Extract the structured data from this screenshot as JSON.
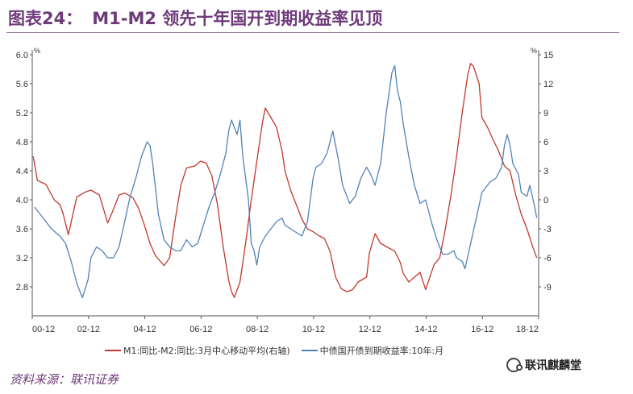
{
  "figure": {
    "number": "图表24：",
    "title": "M1-M2 领先十年国开到期收益率见顶"
  },
  "source": "资料来源：联讯证券",
  "watermark": "联讯麒麟堂",
  "colors": {
    "title": "#6e3b7a",
    "series_m1m2": "#c0392b",
    "series_yield": "#4f83b8",
    "axis": "#555555"
  },
  "chart_data": {
    "type": "line",
    "left_axis": {
      "unit": "%",
      "range": [
        2.4,
        6.0
      ],
      "ticks": [
        "6.0",
        "5.6",
        "5.2",
        "4.8",
        "4.4",
        "4.0",
        "3.6",
        "3.2",
        "2.8"
      ]
    },
    "right_axis": {
      "unit": "%",
      "range": [
        -12,
        15
      ],
      "ticks": [
        "15",
        "12",
        "9",
        "6",
        "3",
        "0",
        "-3",
        "-6",
        "-9"
      ]
    },
    "x_axis": {
      "range": [
        "2000-12",
        "2018-12"
      ],
      "ticks": [
        "00-12",
        "02-12",
        "04-12",
        "06-12",
        "08-12",
        "10-12",
        "12-12",
        "14-12",
        "16-12",
        "18-12"
      ]
    },
    "grid": false,
    "legend_position": "bottom",
    "series": [
      {
        "name": "M1:同比-M2:同比:3月中心移动平均(右轴)",
        "axis": "right",
        "color": "#c0392b",
        "points": [
          [
            2000.95,
            4.5
          ],
          [
            2001.1,
            2.0
          ],
          [
            2001.4,
            1.6
          ],
          [
            2001.7,
            0.0
          ],
          [
            2001.9,
            -0.5
          ],
          [
            2002.0,
            -1.3
          ],
          [
            2002.2,
            -3.6
          ],
          [
            2002.5,
            0.3
          ],
          [
            2002.8,
            0.8
          ],
          [
            2003.0,
            1.0
          ],
          [
            2003.3,
            0.5
          ],
          [
            2003.6,
            -2.4
          ],
          [
            2003.8,
            -1.0
          ],
          [
            2004.0,
            0.5
          ],
          [
            2004.2,
            0.7
          ],
          [
            2004.5,
            0.2
          ],
          [
            2004.7,
            -0.9
          ],
          [
            2004.9,
            -2.6
          ],
          [
            2005.1,
            -4.5
          ],
          [
            2005.3,
            -5.8
          ],
          [
            2005.6,
            -6.8
          ],
          [
            2005.8,
            -6.0
          ],
          [
            2006.0,
            -2.0
          ],
          [
            2006.2,
            1.5
          ],
          [
            2006.4,
            3.3
          ],
          [
            2006.7,
            3.5
          ],
          [
            2006.9,
            4.0
          ],
          [
            2007.1,
            3.8
          ],
          [
            2007.3,
            2.5
          ],
          [
            2007.5,
            -0.5
          ],
          [
            2007.7,
            -4.8
          ],
          [
            2007.9,
            -8.3
          ],
          [
            2008.0,
            -9.5
          ],
          [
            2008.1,
            -10.1
          ],
          [
            2008.3,
            -8.5
          ],
          [
            2008.5,
            -4.5
          ],
          [
            2008.7,
            0.0
          ],
          [
            2008.9,
            4.0
          ],
          [
            2009.1,
            8.0
          ],
          [
            2009.2,
            9.5
          ],
          [
            2009.4,
            8.5
          ],
          [
            2009.6,
            7.5
          ],
          [
            2009.8,
            5.0
          ],
          [
            2009.9,
            3.0
          ],
          [
            2010.1,
            1.0
          ],
          [
            2010.3,
            -0.5
          ],
          [
            2010.5,
            -2.0
          ],
          [
            2010.7,
            -3.0
          ],
          [
            2010.9,
            -3.3
          ],
          [
            2011.1,
            -3.7
          ],
          [
            2011.3,
            -4.0
          ],
          [
            2011.5,
            -5.3
          ],
          [
            2011.7,
            -8.0
          ],
          [
            2011.9,
            -9.2
          ],
          [
            2012.1,
            -9.5
          ],
          [
            2012.3,
            -9.3
          ],
          [
            2012.5,
            -8.5
          ],
          [
            2012.8,
            -8.0
          ],
          [
            2012.9,
            -5.5
          ],
          [
            2013.1,
            -3.5
          ],
          [
            2013.3,
            -4.5
          ],
          [
            2013.6,
            -5.0
          ],
          [
            2013.8,
            -5.3
          ],
          [
            2014.0,
            -6.5
          ],
          [
            2014.1,
            -7.6
          ],
          [
            2014.3,
            -8.5
          ],
          [
            2014.5,
            -8.0
          ],
          [
            2014.7,
            -7.5
          ],
          [
            2014.9,
            -9.3
          ],
          [
            2015.0,
            -8.4
          ],
          [
            2015.2,
            -6.7
          ],
          [
            2015.4,
            -6.0
          ],
          [
            2015.6,
            -3.0
          ],
          [
            2015.8,
            0.5
          ],
          [
            2016.0,
            4.5
          ],
          [
            2016.2,
            9.0
          ],
          [
            2016.4,
            13.0
          ],
          [
            2016.5,
            14.1
          ],
          [
            2016.6,
            13.8
          ],
          [
            2016.8,
            12.0
          ],
          [
            2016.9,
            8.5
          ],
          [
            2017.1,
            7.5
          ],
          [
            2017.3,
            6.2
          ],
          [
            2017.5,
            5.0
          ],
          [
            2017.7,
            3.5
          ],
          [
            2017.9,
            3.0
          ],
          [
            2018.1,
            0.5
          ],
          [
            2018.3,
            -1.5
          ],
          [
            2018.5,
            -3.0
          ],
          [
            2018.7,
            -4.8
          ],
          [
            2018.85,
            -6.0
          ]
        ]
      },
      {
        "name": "中债国开债到期收益率:10年:月",
        "axis": "left",
        "color": "#4f83b8",
        "points": [
          [
            2001.0,
            3.9
          ],
          [
            2001.3,
            3.75
          ],
          [
            2001.6,
            3.6
          ],
          [
            2001.9,
            3.5
          ],
          [
            2002.1,
            3.4
          ],
          [
            2002.3,
            3.15
          ],
          [
            2002.5,
            2.85
          ],
          [
            2002.7,
            2.65
          ],
          [
            2002.9,
            2.9
          ],
          [
            2003.0,
            3.2
          ],
          [
            2003.2,
            3.35
          ],
          [
            2003.4,
            3.3
          ],
          [
            2003.6,
            3.2
          ],
          [
            2003.8,
            3.2
          ],
          [
            2004.0,
            3.35
          ],
          [
            2004.2,
            3.7
          ],
          [
            2004.4,
            4.05
          ],
          [
            2004.6,
            4.3
          ],
          [
            2004.8,
            4.6
          ],
          [
            2005.0,
            4.8
          ],
          [
            2005.1,
            4.75
          ],
          [
            2005.2,
            4.5
          ],
          [
            2005.4,
            3.8
          ],
          [
            2005.6,
            3.45
          ],
          [
            2005.8,
            3.35
          ],
          [
            2006.0,
            3.3
          ],
          [
            2006.2,
            3.3
          ],
          [
            2006.4,
            3.45
          ],
          [
            2006.6,
            3.35
          ],
          [
            2006.8,
            3.4
          ],
          [
            2007.0,
            3.65
          ],
          [
            2007.2,
            3.9
          ],
          [
            2007.4,
            4.1
          ],
          [
            2007.6,
            4.35
          ],
          [
            2007.8,
            4.65
          ],
          [
            2007.9,
            4.95
          ],
          [
            2008.0,
            5.1
          ],
          [
            2008.1,
            5.0
          ],
          [
            2008.2,
            4.9
          ],
          [
            2008.3,
            5.1
          ],
          [
            2008.4,
            4.6
          ],
          [
            2008.5,
            4.3
          ],
          [
            2008.6,
            4.0
          ],
          [
            2008.7,
            3.4
          ],
          [
            2008.8,
            3.3
          ],
          [
            2008.9,
            3.1
          ],
          [
            2009.0,
            3.35
          ],
          [
            2009.2,
            3.5
          ],
          [
            2009.4,
            3.6
          ],
          [
            2009.6,
            3.7
          ],
          [
            2009.8,
            3.75
          ],
          [
            2009.9,
            3.65
          ],
          [
            2010.1,
            3.6
          ],
          [
            2010.3,
            3.55
          ],
          [
            2010.5,
            3.5
          ],
          [
            2010.7,
            3.7
          ],
          [
            2010.9,
            4.3
          ],
          [
            2011.0,
            4.45
          ],
          [
            2011.2,
            4.5
          ],
          [
            2011.4,
            4.65
          ],
          [
            2011.6,
            4.95
          ],
          [
            2011.8,
            4.55
          ],
          [
            2011.95,
            4.2
          ],
          [
            2012.2,
            3.95
          ],
          [
            2012.4,
            4.05
          ],
          [
            2012.6,
            4.3
          ],
          [
            2012.8,
            4.45
          ],
          [
            2012.95,
            4.35
          ],
          [
            2013.1,
            4.2
          ],
          [
            2013.3,
            4.5
          ],
          [
            2013.5,
            5.2
          ],
          [
            2013.7,
            5.75
          ],
          [
            2013.8,
            5.85
          ],
          [
            2013.9,
            5.5
          ],
          [
            2014.0,
            5.35
          ],
          [
            2014.1,
            5.05
          ],
          [
            2014.3,
            4.6
          ],
          [
            2014.5,
            4.2
          ],
          [
            2014.7,
            3.95
          ],
          [
            2014.9,
            4.0
          ],
          [
            2015.0,
            3.85
          ],
          [
            2015.1,
            3.7
          ],
          [
            2015.3,
            3.45
          ],
          [
            2015.5,
            3.25
          ],
          [
            2015.7,
            3.25
          ],
          [
            2015.9,
            3.3
          ],
          [
            2016.0,
            3.2
          ],
          [
            2016.2,
            3.15
          ],
          [
            2016.3,
            3.05
          ],
          [
            2016.5,
            3.4
          ],
          [
            2016.7,
            3.75
          ],
          [
            2016.9,
            4.1
          ],
          [
            2017.0,
            4.15
          ],
          [
            2017.2,
            4.25
          ],
          [
            2017.4,
            4.3
          ],
          [
            2017.6,
            4.45
          ],
          [
            2017.7,
            4.75
          ],
          [
            2017.8,
            4.9
          ],
          [
            2017.9,
            4.75
          ],
          [
            2018.0,
            4.5
          ],
          [
            2018.2,
            4.35
          ],
          [
            2018.3,
            4.1
          ],
          [
            2018.5,
            4.05
          ],
          [
            2018.6,
            4.2
          ],
          [
            2018.75,
            3.95
          ],
          [
            2018.85,
            3.75
          ]
        ]
      }
    ]
  }
}
